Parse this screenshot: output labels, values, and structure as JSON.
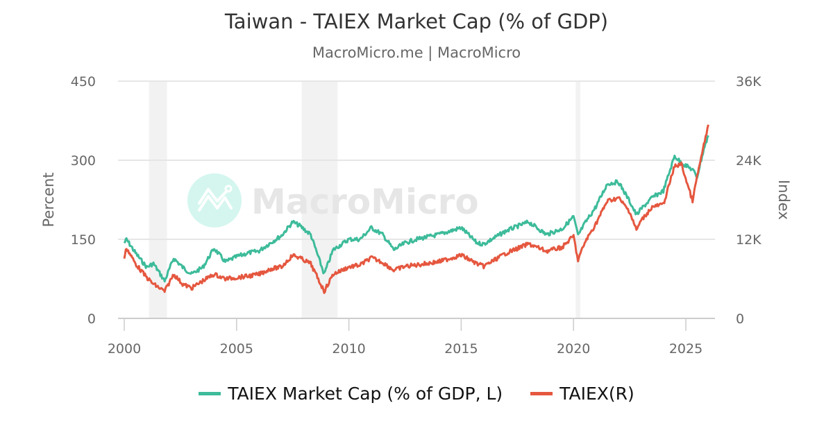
{
  "header": {
    "title": "Taiwan - TAIEX Market Cap (% of GDP)",
    "subtitle": "MacroMicro.me | MacroMicro"
  },
  "watermark": {
    "text": "MacroMicro"
  },
  "colors": {
    "green": "#3dbb9a",
    "red": "#e5573f",
    "grid": "#e6e6e6",
    "band": "#f2f2f2"
  },
  "legend": [
    {
      "label": "TAIEX Market Cap (% of GDP, L)",
      "color": "#3dbb9a"
    },
    {
      "label": "TAIEX(R)",
      "color": "#e5573f"
    }
  ],
  "chart_data": {
    "type": "line",
    "title": "Taiwan - TAIEX Market Cap (% of GDP)",
    "subtitle": "MacroMicro.me | MacroMicro",
    "xlabel": "",
    "ylabel": "Percent",
    "ylabel_right": "Index",
    "xlim": [
      1999.7,
      2026.3
    ],
    "ylim": [
      0,
      450
    ],
    "ylim_right": [
      0,
      36000
    ],
    "x_ticks": [
      "2000",
      "2005",
      "2010",
      "2015",
      "2020",
      "2025"
    ],
    "y_ticks_left": [
      "0",
      "150",
      "300",
      "450"
    ],
    "y_ticks_right": [
      "0",
      "12K",
      "24K",
      "36K"
    ],
    "grid": true,
    "legend_position": "bottom",
    "shaded_periods": [
      [
        2001.1,
        2001.9
      ],
      [
        2007.9,
        2009.5
      ],
      [
        2020.1,
        2020.3
      ]
    ],
    "x": [
      2000.0,
      2000.1,
      2000.5,
      2001.0,
      2001.3,
      2001.8,
      2002.2,
      2002.6,
      2003.0,
      2003.5,
      2004.0,
      2004.5,
      2005.0,
      2005.5,
      2006.0,
      2006.5,
      2007.0,
      2007.5,
      2007.8,
      2008.3,
      2008.9,
      2009.3,
      2010.0,
      2010.5,
      2011.0,
      2011.5,
      2012.0,
      2012.5,
      2013.0,
      2014.0,
      2015.0,
      2015.7,
      2016.0,
      2017.0,
      2018.0,
      2018.8,
      2019.5,
      2020.0,
      2020.2,
      2020.5,
      2021.0,
      2021.5,
      2022.0,
      2022.5,
      2022.8,
      2023.0,
      2023.5,
      2024.0,
      2024.5,
      2024.8,
      2025.3,
      2025.5,
      2025.8,
      2026.0
    ],
    "series": [
      {
        "name": "TAIEX Market Cap (% of GDP, L)",
        "axis": "left",
        "color": "#3dbb9a",
        "values": [
          143,
          150,
          124,
          97,
          104,
          71,
          114,
          97,
          84,
          97,
          133,
          107,
          117,
          124,
          128,
          143,
          157,
          183,
          176,
          159,
          84,
          130,
          150,
          150,
          172,
          159,
          130,
          143,
          150,
          159,
          172,
          143,
          141,
          166,
          183,
          159,
          170,
          193,
          157,
          180,
          212,
          255,
          259,
          222,
          196,
          207,
          229,
          242,
          308,
          295,
          282,
          268,
          321,
          347
        ]
      },
      {
        "name": "TAIEX(R)",
        "axis": "right",
        "color": "#e5573f",
        "values": [
          9200,
          10700,
          8300,
          6200,
          5200,
          4100,
          6700,
          5200,
          4600,
          5700,
          6700,
          6000,
          6200,
          6400,
          6700,
          7500,
          7800,
          9600,
          9200,
          8300,
          4100,
          6700,
          7800,
          8100,
          9200,
          8500,
          7300,
          7900,
          8100,
          8600,
          9600,
          8300,
          7900,
          9900,
          11300,
          10200,
          10800,
          12500,
          8800,
          11500,
          14400,
          17800,
          18300,
          16200,
          13400,
          14800,
          16900,
          17300,
          23100,
          23400,
          17800,
          21500,
          26200,
          29400
        ]
      }
    ]
  }
}
